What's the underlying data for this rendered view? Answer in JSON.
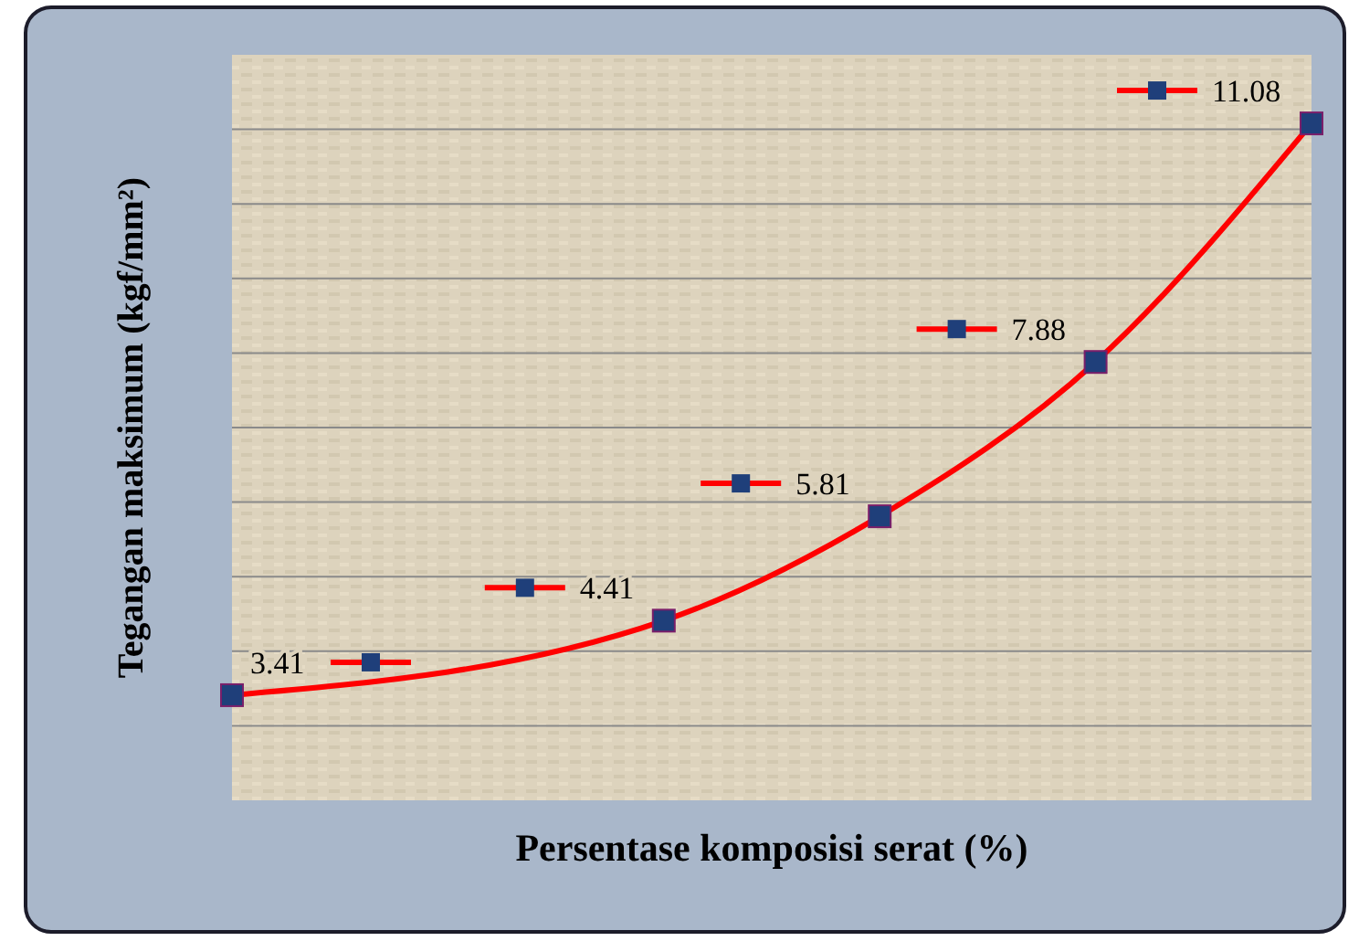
{
  "chart_data": {
    "type": "line",
    "xlabel": "Persentase komposisi serat (%)",
    "ylabel": "Tegangan maksimum (kgf/mm²)",
    "categories": [
      null,
      null,
      null,
      null,
      null,
      null
    ],
    "series": [
      {
        "color": "#ff0000",
        "values": [
          3.41,
          null,
          4.41,
          5.81,
          7.88,
          11.08
        ]
      }
    ],
    "ylim": [
      2,
      12
    ],
    "yticks": [
      {
        "value": 3,
        "label": null
      },
      {
        "value": 4,
        "label": null
      },
      {
        "value": 5,
        "label": null
      },
      {
        "value": 6,
        "label": null
      },
      {
        "value": 7,
        "label": null
      },
      {
        "value": 8,
        "label": null
      },
      {
        "value": 9,
        "label": null
      },
      {
        "value": 10,
        "label": null
      },
      {
        "value": 11,
        "label": null
      }
    ],
    "grid": "y",
    "marker": "square",
    "data_labels": true
  }
}
